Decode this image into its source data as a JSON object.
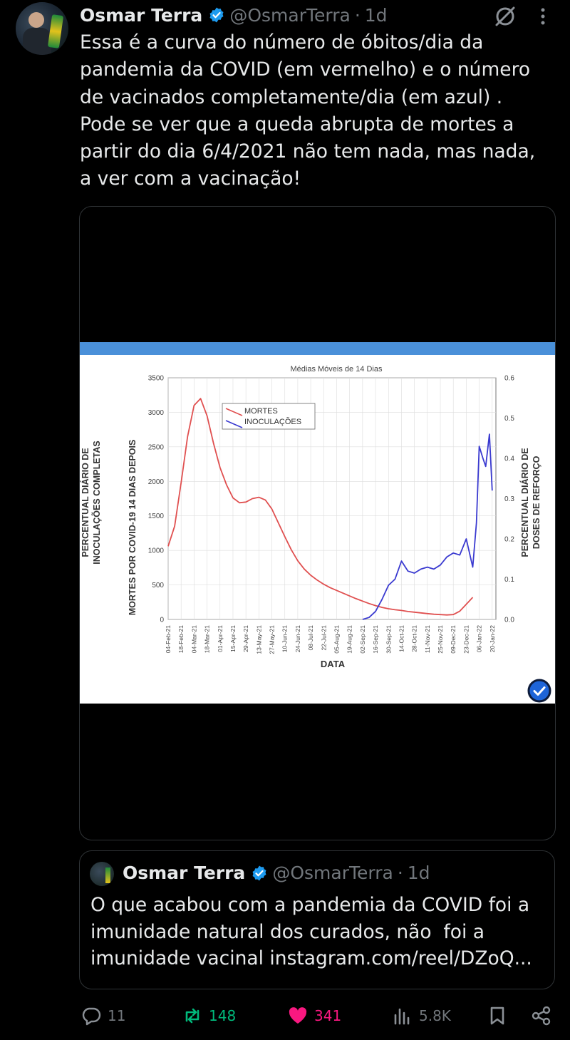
{
  "tweet": {
    "author_name": "Osmar Terra",
    "handle": "@OsmarTerra",
    "separator": "·",
    "time": "1d",
    "text": "Essa é a curva do número de óbitos/dia da\npandemia da COVID (em vermelho) e o número\nde vacinados completamente/dia (em azul) .\nPode se ver que a queda abrupta de mortes a\npartir do dia 6/4/2021 não tem nada, mas nada,\na ver com a vacinação!"
  },
  "icons": {
    "verified": "verified-badge-icon",
    "grok": "grok-icon",
    "more": "more-options-icon",
    "reply": "reply-icon",
    "retweet": "retweet-icon",
    "like": "heart-icon",
    "views": "views-icon",
    "bookmark": "bookmark-icon",
    "share": "share-icon"
  },
  "colors": {
    "accent": "#1d9bf0",
    "retweet": "#00ba7c",
    "like": "#f91880",
    "muted": "#71767b",
    "deaths_line": "#e05050",
    "inoculations_line": "#3a3ad0"
  },
  "chart_data": {
    "type": "line",
    "title": "Médias Móveis de 14 Dias",
    "xlabel": "DATA",
    "ylabel_left_outer": "PERCENTUAL DIÁRIO DE\nINOCULAÇÕES COMPLETAS",
    "ylabel_left": "MORTES POR COVID-19 14 DIAS DEPOIS",
    "ylabel_right": "PERCENTUAL DIÁRIO DE\nDOSES DE REFORÇO",
    "ylim_left": [
      0,
      3500
    ],
    "ylim_right": [
      0,
      0.6
    ],
    "y_ticks_left": [
      "0",
      "500",
      "1000",
      "1500",
      "2000",
      "2500",
      "3000",
      "3500"
    ],
    "y_ticks_right": [
      "0.0",
      "0.1",
      "0.2",
      "0.3",
      "0.4",
      "0.5",
      "0.6"
    ],
    "x_ticks": [
      "04-Feb-21",
      "18-Feb-21",
      "04-Mar-21",
      "18-Mar-21",
      "01-Apr-21",
      "15-Apr-21",
      "29-Apr-21",
      "13-May-21",
      "27-May-21",
      "10-Jun-21",
      "24-Jun-21",
      "08-Jul-21",
      "22-Jul-21",
      "05-Aug-21",
      "19-Aug-21",
      "02-Sep-21",
      "16-Sep-21",
      "30-Sep-21",
      "14-Oct-21",
      "28-Oct-21",
      "11-Nov-21",
      "25-Nov-21",
      "09-Dec-21",
      "23-Dec-21",
      "06-Jan-22",
      "20-Jan-22"
    ],
    "grid": true,
    "legend_position": "top-center",
    "series": [
      {
        "name": "MORTES",
        "axis": "left",
        "x": [
          "04-Feb-21",
          "11-Feb-21",
          "18-Feb-21",
          "25-Feb-21",
          "04-Mar-21",
          "11-Mar-21",
          "18-Mar-21",
          "25-Mar-21",
          "01-Apr-21",
          "08-Apr-21",
          "15-Apr-21",
          "22-Apr-21",
          "29-Apr-21",
          "06-May-21",
          "13-May-21",
          "20-May-21",
          "27-May-21",
          "03-Jun-21",
          "10-Jun-21",
          "17-Jun-21",
          "24-Jun-21",
          "01-Jul-21",
          "08-Jul-21",
          "15-Jul-21",
          "22-Jul-21",
          "29-Jul-21",
          "05-Aug-21",
          "12-Aug-21",
          "19-Aug-21",
          "26-Aug-21",
          "02-Sep-21",
          "09-Sep-21",
          "16-Sep-21",
          "23-Sep-21",
          "30-Sep-21",
          "07-Oct-21",
          "14-Oct-21",
          "21-Oct-21",
          "28-Oct-21",
          "04-Nov-21",
          "11-Nov-21",
          "18-Nov-21",
          "25-Nov-21",
          "02-Dec-21",
          "09-Dec-21",
          "16-Dec-21",
          "23-Dec-21",
          "30-Dec-21"
        ],
        "values": [
          1060,
          1350,
          1980,
          2650,
          3100,
          3200,
          2950,
          2550,
          2200,
          1950,
          1760,
          1690,
          1700,
          1750,
          1770,
          1730,
          1600,
          1400,
          1200,
          1010,
          850,
          730,
          640,
          570,
          510,
          460,
          420,
          380,
          340,
          300,
          265,
          230,
          200,
          175,
          155,
          140,
          130,
          115,
          105,
          95,
          85,
          75,
          70,
          65,
          70,
          120,
          220,
          320
        ]
      },
      {
        "name": "INOCULAÇÕES",
        "axis": "right",
        "x": [
          "02-Sep-21",
          "09-Sep-21",
          "16-Sep-21",
          "23-Sep-21",
          "30-Sep-21",
          "07-Oct-21",
          "14-Oct-21",
          "21-Oct-21",
          "28-Oct-21",
          "04-Nov-21",
          "11-Nov-21",
          "18-Nov-21",
          "25-Nov-21",
          "02-Dec-21",
          "09-Dec-21",
          "16-Dec-21",
          "23-Dec-21",
          "30-Dec-21",
          "03-Jan-22",
          "06-Jan-22",
          "10-Jan-22",
          "13-Jan-22",
          "17-Jan-22",
          "20-Jan-22"
        ],
        "values": [
          0.0,
          0.005,
          0.02,
          0.05,
          0.085,
          0.1,
          0.145,
          0.12,
          0.115,
          0.125,
          0.13,
          0.125,
          0.135,
          0.155,
          0.165,
          0.16,
          0.2,
          0.13,
          0.24,
          0.43,
          0.4,
          0.38,
          0.46,
          0.32
        ]
      }
    ]
  },
  "quote": {
    "author_name": "Osmar Terra",
    "handle": "@OsmarTerra",
    "separator": "·",
    "time": "1d",
    "text": "O que acabou com a pandemia da COVID foi a\nimunidade natural dos curados, não  foi a\nimunidade vacinal instagram.com/reel/DZoQ..."
  },
  "actions": {
    "replies": "11",
    "retweets": "148",
    "likes": "341",
    "views": "5.8K"
  }
}
